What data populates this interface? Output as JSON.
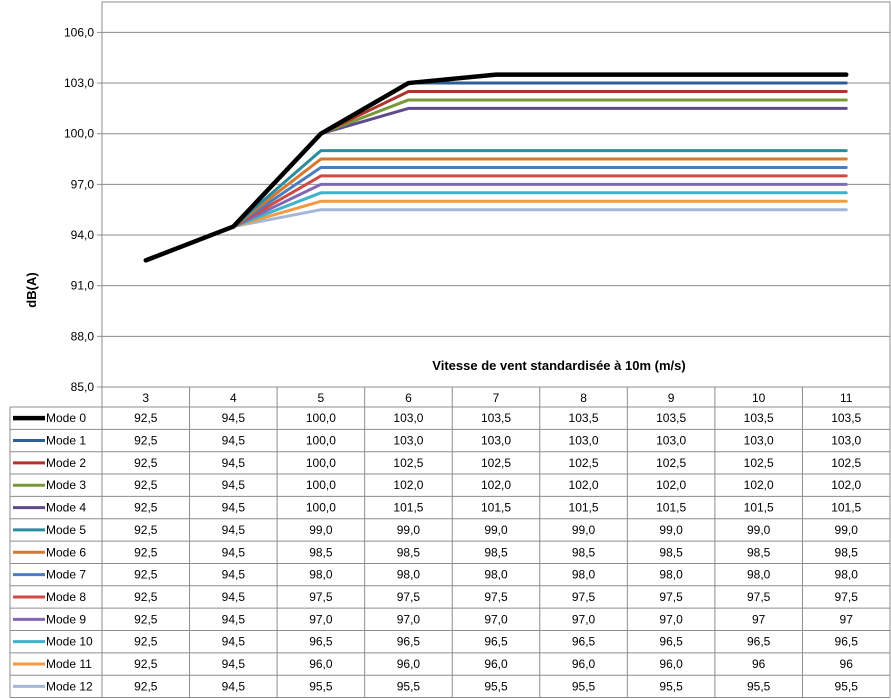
{
  "chart_data": {
    "type": "line",
    "title": "",
    "xlabel": "Vitesse de vent  standardisée à 10m (m/s)",
    "ylabel": "dB(A)",
    "ylim": [
      85.0,
      107.8
    ],
    "yticks": [
      "85,0",
      "88,0",
      "91,0",
      "94,0",
      "97,0",
      "100,0",
      "103,0",
      "106,0"
    ],
    "ytick_values": [
      85,
      88,
      91,
      94,
      97,
      100,
      103,
      106
    ],
    "categories": [
      "3",
      "4",
      "5",
      "6",
      "7",
      "8",
      "9",
      "10",
      "11"
    ],
    "grid": true,
    "legend": "data-table",
    "series": [
      {
        "name": "Mode 0",
        "color": "#000000",
        "values": [
          92.5,
          94.5,
          100.0,
          103.0,
          103.5,
          103.5,
          103.5,
          103.5,
          103.5
        ],
        "labels": [
          "92,5",
          "94,5",
          "100,0",
          "103,0",
          "103,5",
          "103,5",
          "103,5",
          "103,5",
          "103,5"
        ]
      },
      {
        "name": "Mode 1",
        "color": "#2E5F9A",
        "values": [
          92.5,
          94.5,
          100.0,
          103.0,
          103.0,
          103.0,
          103.0,
          103.0,
          103.0
        ],
        "labels": [
          "92,5",
          "94,5",
          "100,0",
          "103,0",
          "103,0",
          "103,0",
          "103,0",
          "103,0",
          "103,0"
        ]
      },
      {
        "name": "Mode 2",
        "color": "#B0342E",
        "values": [
          92.5,
          94.5,
          100.0,
          102.5,
          102.5,
          102.5,
          102.5,
          102.5,
          102.5
        ],
        "labels": [
          "92,5",
          "94,5",
          "100,0",
          "102,5",
          "102,5",
          "102,5",
          "102,5",
          "102,5",
          "102,5"
        ]
      },
      {
        "name": "Mode 3",
        "color": "#78993A",
        "values": [
          92.5,
          94.5,
          100.0,
          102.0,
          102.0,
          102.0,
          102.0,
          102.0,
          102.0
        ],
        "labels": [
          "92,5",
          "94,5",
          "100,0",
          "102,0",
          "102,0",
          "102,0",
          "102,0",
          "102,0",
          "102,0"
        ]
      },
      {
        "name": "Mode 4",
        "color": "#5F4A8B",
        "values": [
          92.5,
          94.5,
          100.0,
          101.5,
          101.5,
          101.5,
          101.5,
          101.5,
          101.5
        ],
        "labels": [
          "92,5",
          "94,5",
          "100,0",
          "101,5",
          "101,5",
          "101,5",
          "101,5",
          "101,5",
          "101,5"
        ]
      },
      {
        "name": "Mode 5",
        "color": "#2C8B9E",
        "values": [
          92.5,
          94.5,
          99.0,
          99.0,
          99.0,
          99.0,
          99.0,
          99.0,
          99.0
        ],
        "labels": [
          "92,5",
          "94,5",
          "99,0",
          "99,0",
          "99,0",
          "99,0",
          "99,0",
          "99,0",
          "99,0"
        ]
      },
      {
        "name": "Mode 6",
        "color": "#D6782F",
        "values": [
          92.5,
          94.5,
          98.5,
          98.5,
          98.5,
          98.5,
          98.5,
          98.5,
          98.5
        ],
        "labels": [
          "92,5",
          "94,5",
          "98,5",
          "98,5",
          "98,5",
          "98,5",
          "98,5",
          "98,5",
          "98,5"
        ]
      },
      {
        "name": "Mode 7",
        "color": "#4A7EC0",
        "values": [
          92.5,
          94.5,
          98.0,
          98.0,
          98.0,
          98.0,
          98.0,
          98.0,
          98.0
        ],
        "labels": [
          "92,5",
          "94,5",
          "98,0",
          "98,0",
          "98,0",
          "98,0",
          "98,0",
          "98,0",
          "98,0"
        ]
      },
      {
        "name": "Mode 8",
        "color": "#D04A44",
        "values": [
          92.5,
          94.5,
          97.5,
          97.5,
          97.5,
          97.5,
          97.5,
          97.5,
          97.5
        ],
        "labels": [
          "92,5",
          "94,5",
          "97,5",
          "97,5",
          "97,5",
          "97,5",
          "97,5",
          "97,5",
          "97,5"
        ]
      },
      {
        "name": "Mode 9",
        "color": "#8467B4",
        "values": [
          92.5,
          94.5,
          97.0,
          97.0,
          97.0,
          97.0,
          97.0,
          97.0,
          97.0
        ],
        "labels": [
          "92,5",
          "94,5",
          "97,0",
          "97,0",
          "97,0",
          "97,0",
          "97,0",
          "97",
          "97"
        ]
      },
      {
        "name": "Mode 10",
        "color": "#3EB3C9",
        "values": [
          92.5,
          94.5,
          96.5,
          96.5,
          96.5,
          96.5,
          96.5,
          96.5,
          96.5
        ],
        "labels": [
          "92,5",
          "94,5",
          "96,5",
          "96,5",
          "96,5",
          "96,5",
          "96,5",
          "96,5",
          "96,5"
        ]
      },
      {
        "name": "Mode 11",
        "color": "#F59A41",
        "values": [
          92.5,
          94.5,
          96.0,
          96.0,
          96.0,
          96.0,
          96.0,
          96.0,
          96.0
        ],
        "labels": [
          "92,5",
          "94,5",
          "96,0",
          "96,0",
          "96,0",
          "96,0",
          "96,0",
          "96",
          "96"
        ]
      },
      {
        "name": "Mode 12",
        "color": "#A4B6D9",
        "values": [
          92.5,
          94.5,
          95.5,
          95.5,
          95.5,
          95.5,
          95.5,
          95.5,
          95.5
        ],
        "labels": [
          "92,5",
          "94,5",
          "95,5",
          "95,5",
          "95,5",
          "95,5",
          "95,5",
          "95,5",
          "95,5"
        ]
      }
    ]
  }
}
